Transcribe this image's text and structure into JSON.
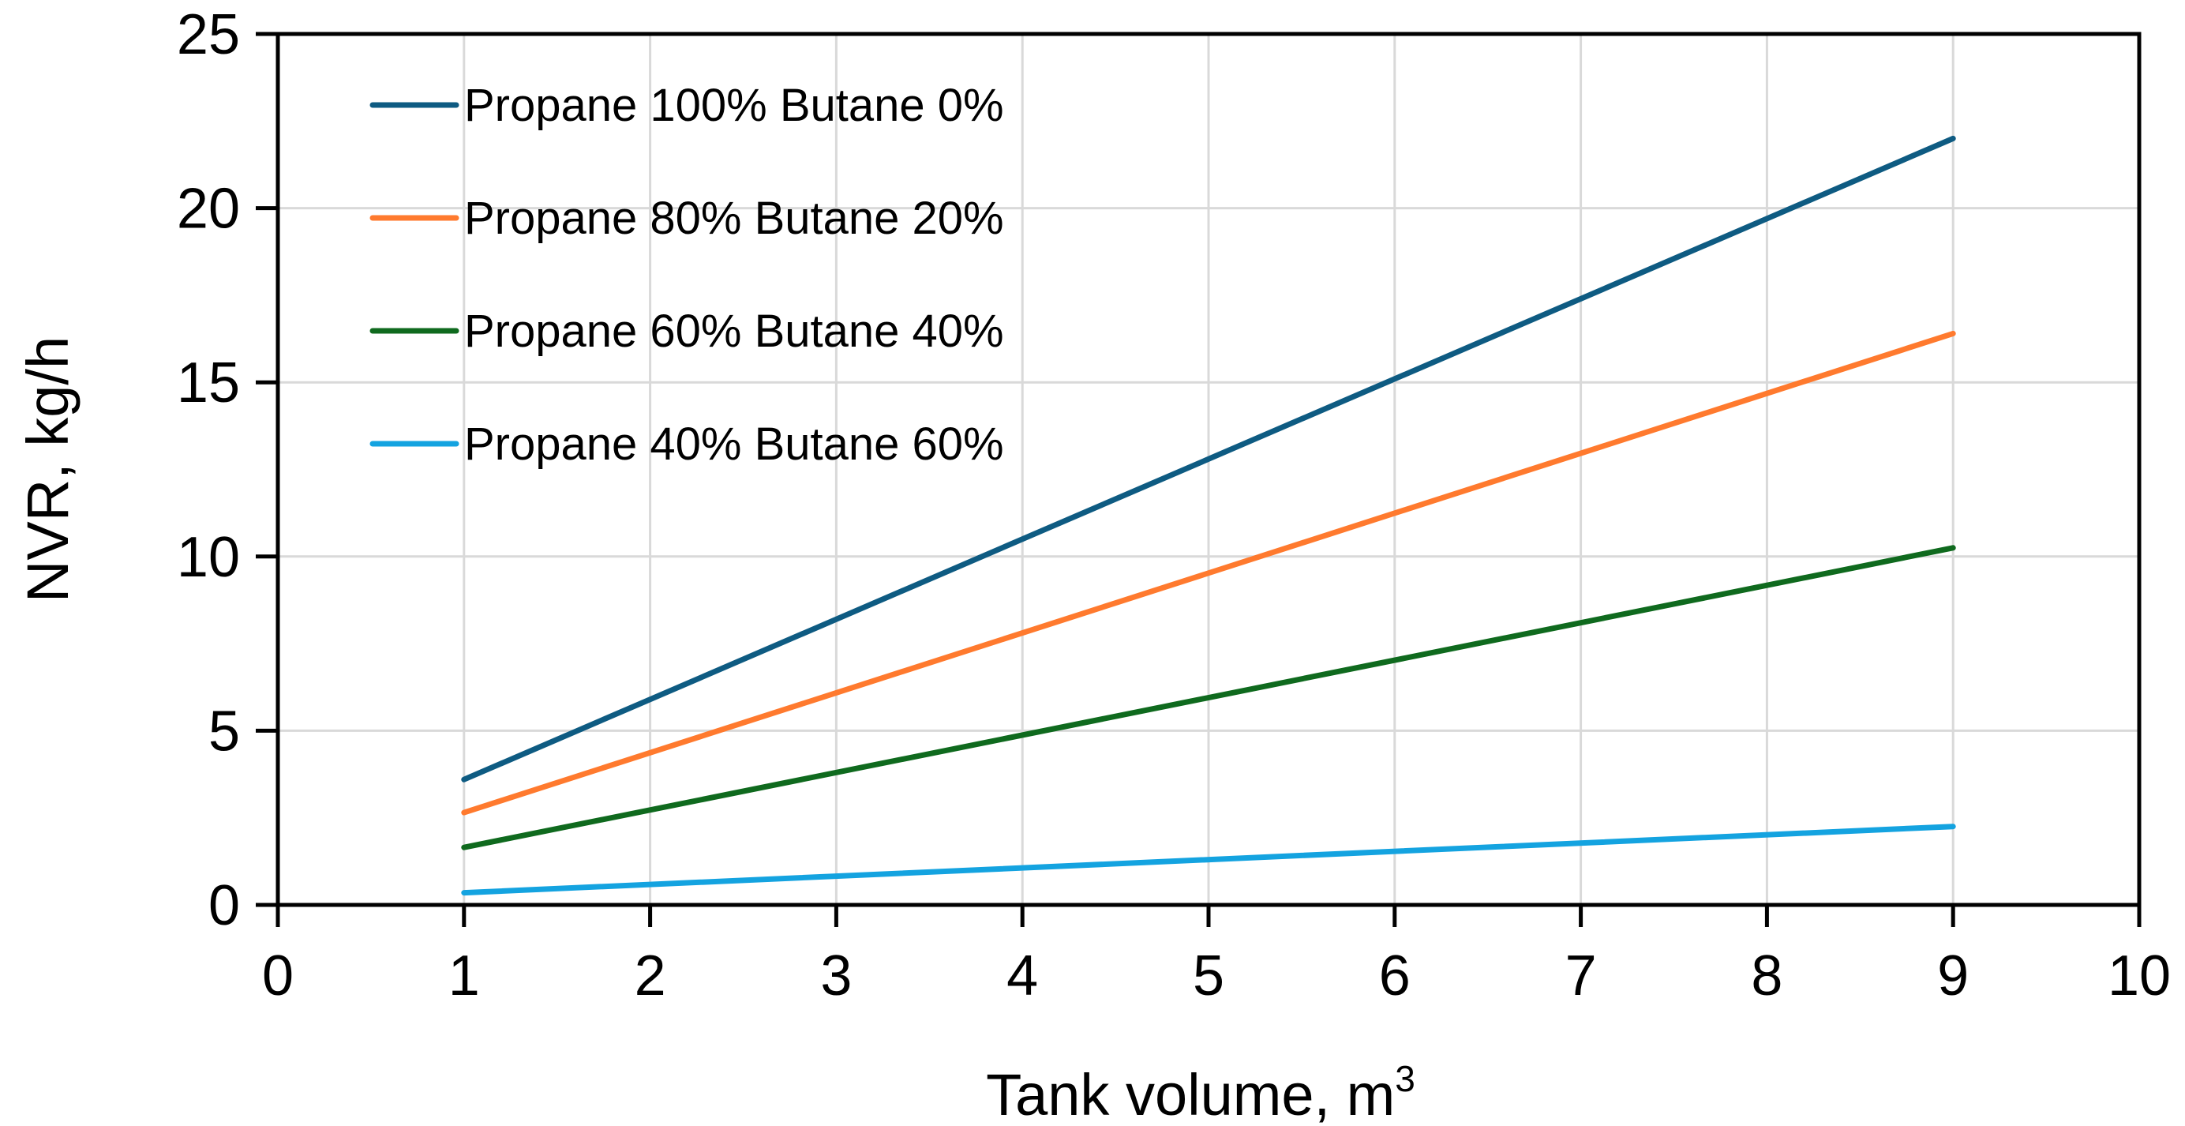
{
  "chart_data": {
    "type": "line",
    "title": "",
    "xlabel": "Tank volume, m",
    "xlabel_superscript": "3",
    "ylabel": "NVR, kg/h",
    "xlim": [
      0,
      10
    ],
    "ylim": [
      0,
      25
    ],
    "xticks": [
      0,
      1,
      2,
      3,
      4,
      5,
      6,
      7,
      8,
      9,
      10
    ],
    "yticks": [
      0,
      5,
      10,
      15,
      20,
      25
    ],
    "grid": true,
    "legend_position": "top-left",
    "series": [
      {
        "name": "Propane 100% Butane 0%",
        "color": "#0e5b82",
        "x": [
          1,
          9
        ],
        "y": [
          3.6,
          22.0
        ]
      },
      {
        "name": "Propane 80% Butane 20%",
        "color": "#ff7a2e",
        "x": [
          1,
          9
        ],
        "y": [
          2.65,
          16.4
        ]
      },
      {
        "name": "Propane 60% Butane 40%",
        "color": "#0f6a1e",
        "x": [
          1,
          9
        ],
        "y": [
          1.65,
          10.25
        ]
      },
      {
        "name": "Propane 40% Butane 60%",
        "color": "#14a3e0",
        "x": [
          1,
          9
        ],
        "y": [
          0.35,
          2.25
        ]
      }
    ]
  }
}
